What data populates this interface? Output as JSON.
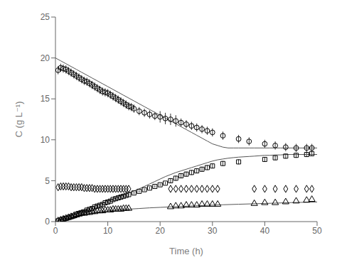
{
  "chart_data": {
    "type": "scatter",
    "xlabel": "Time (h)",
    "ylabel": "C (g L⁻¹)",
    "xlim": [
      0,
      50
    ],
    "ylim": [
      0,
      25
    ],
    "xticks": [
      0,
      10,
      20,
      30,
      40,
      50
    ],
    "yticks": [
      0,
      5,
      10,
      15,
      20,
      25
    ],
    "grid": false,
    "series": [
      {
        "type": "line",
        "line_style": "solid",
        "color": "#555555",
        "x": [
          0,
          1,
          2,
          3,
          4,
          5,
          6,
          7,
          8,
          9,
          10,
          11,
          12,
          13,
          14,
          15,
          16,
          17,
          18,
          19,
          20,
          21,
          22,
          23,
          24,
          25,
          26,
          27,
          28,
          29,
          30,
          31,
          32,
          33,
          34,
          35,
          36,
          37,
          38,
          39,
          40,
          41,
          42,
          43,
          44,
          45,
          46,
          47,
          48,
          49,
          50
        ],
        "values": [
          20.0,
          19.65,
          19.3,
          18.95,
          18.6,
          18.25,
          17.9,
          17.55,
          17.2,
          16.85,
          16.5,
          16.15,
          15.8,
          15.45,
          15.1,
          14.75,
          14.4,
          14.05,
          13.7,
          13.35,
          13.0,
          12.65,
          12.3,
          11.95,
          11.6,
          11.25,
          10.9,
          10.55,
          10.2,
          9.85,
          9.5,
          9.3,
          9.1,
          9.0,
          9.0,
          9.0,
          9.0,
          9.0,
          9.0,
          9.0,
          9.0,
          9.0,
          9.0,
          9.0,
          9.0,
          9.0,
          9.0,
          9.0,
          9.0,
          9.0,
          9.0
        ]
      },
      {
        "type": "line",
        "line_style": "solid",
        "color": "#555555",
        "x": [
          0,
          1,
          2,
          3,
          4,
          5,
          6,
          7,
          8,
          9,
          10,
          11,
          12,
          13,
          14,
          15,
          16,
          17,
          18,
          19,
          20,
          21,
          22,
          23,
          24,
          25,
          26,
          27,
          28,
          29,
          30,
          31,
          32,
          33,
          34,
          35,
          36,
          37,
          38,
          39,
          40,
          41,
          42,
          43,
          44,
          45,
          46,
          47,
          48,
          49,
          50
        ],
        "values": [
          0.0,
          0.25,
          0.5,
          0.75,
          1.0,
          1.25,
          1.5,
          1.75,
          2.0,
          2.25,
          2.5,
          2.75,
          3.0,
          3.25,
          3.5,
          3.75,
          4.0,
          4.3,
          4.6,
          4.9,
          5.2,
          5.5,
          5.75,
          6.0,
          6.2,
          6.4,
          6.6,
          6.8,
          7.0,
          7.2,
          7.4,
          7.55,
          7.65,
          7.75,
          7.82,
          7.88,
          7.92,
          7.96,
          8.0,
          8.05,
          8.1,
          8.1,
          8.15,
          8.15,
          8.2,
          8.2,
          8.2,
          8.2,
          8.2,
          8.2,
          8.2
        ]
      },
      {
        "type": "line",
        "line_style": "solid",
        "color": "#555555",
        "x": [
          0,
          1,
          2,
          3,
          4,
          5,
          6,
          7,
          8,
          9,
          10,
          12,
          14,
          16,
          18,
          20,
          22,
          24,
          26,
          28,
          30,
          32,
          35,
          40,
          45,
          50
        ],
        "values": [
          0.0,
          0.18,
          0.35,
          0.52,
          0.68,
          0.82,
          0.95,
          1.06,
          1.15,
          1.23,
          1.3,
          1.42,
          1.52,
          1.6,
          1.68,
          1.74,
          1.8,
          1.86,
          1.91,
          1.96,
          2.01,
          2.06,
          2.12,
          2.22,
          2.32,
          2.4
        ]
      },
      {
        "type": "scatter",
        "marker": "circle",
        "color": "#000000",
        "x": [
          0.5,
          1,
          1.5,
          2,
          2.5,
          3,
          3.5,
          4,
          4.5,
          5,
          5.5,
          6,
          6.5,
          7,
          7.5,
          8,
          8.5,
          9,
          9.5,
          10,
          10.5,
          11,
          11.5,
          12,
          12.5,
          13,
          13.5,
          14,
          14.5,
          15,
          16,
          17,
          18,
          19,
          20,
          21,
          22,
          23,
          24,
          25,
          26,
          27,
          28,
          29,
          30,
          32,
          35,
          37,
          40,
          42,
          44,
          46,
          48,
          49
        ],
        "values": [
          18.5,
          18.8,
          18.7,
          18.6,
          18.4,
          18.2,
          18.0,
          17.8,
          17.6,
          17.4,
          17.2,
          17.1,
          16.9,
          16.7,
          16.5,
          16.3,
          16.1,
          15.9,
          15.8,
          15.7,
          15.5,
          15.3,
          15.1,
          14.9,
          14.7,
          14.5,
          14.3,
          14.1,
          14.0,
          13.8,
          13.5,
          13.3,
          13.1,
          12.9,
          12.8,
          12.6,
          12.5,
          12.3,
          12.1,
          11.9,
          11.7,
          11.5,
          11.3,
          11.1,
          10.9,
          10.5,
          10.1,
          9.8,
          9.5,
          9.3,
          9.1,
          9.0,
          9.0,
          9.0
        ],
        "yerr": [
          0.5,
          0.5,
          0.5,
          0.5,
          0.5,
          0.5,
          0.5,
          0.5,
          0.5,
          0.5,
          0.5,
          0.5,
          0.5,
          0.5,
          0.5,
          0.5,
          0.5,
          0.5,
          0.5,
          0.5,
          0.5,
          0.5,
          0.5,
          0.5,
          0.5,
          0.5,
          0.5,
          0.5,
          0.5,
          0.5,
          0.5,
          0.5,
          0.5,
          0.5,
          0.7,
          0.7,
          0.7,
          0.7,
          0.5,
          0.5,
          0.5,
          0.5,
          0.5,
          0.5,
          0.5,
          0.5,
          0.5,
          0.5,
          0.5,
          0.5,
          0.5,
          0.5,
          0.5,
          0.5
        ]
      },
      {
        "type": "scatter",
        "marker": "square",
        "color": "#000000",
        "x": [
          0.5,
          1,
          1.5,
          2,
          2.5,
          3,
          3.5,
          4,
          4.5,
          5,
          5.5,
          6,
          6.5,
          7,
          7.5,
          8,
          8.5,
          9,
          9.5,
          10,
          10.5,
          11,
          11.5,
          12,
          12.5,
          13,
          13.5,
          14,
          15,
          16,
          17,
          18,
          19,
          20,
          21,
          22,
          23,
          24,
          25,
          26,
          27,
          28,
          29,
          30,
          32,
          35,
          40,
          42,
          44,
          46,
          48,
          49
        ],
        "values": [
          0.1,
          0.2,
          0.3,
          0.4,
          0.5,
          0.6,
          0.7,
          0.9,
          1.0,
          1.1,
          1.2,
          1.4,
          1.5,
          1.6,
          1.8,
          1.9,
          2.0,
          2.1,
          2.3,
          2.4,
          2.5,
          2.7,
          2.8,
          2.9,
          3.0,
          3.1,
          3.2,
          3.3,
          3.5,
          3.7,
          3.9,
          4.1,
          4.3,
          4.5,
          4.7,
          5.0,
          5.3,
          5.6,
          5.8,
          6.0,
          6.2,
          6.4,
          6.6,
          6.8,
          7.1,
          7.3,
          7.6,
          7.8,
          8.0,
          8.1,
          8.2,
          8.3
        ],
        "yerr": [
          0.15,
          0.15,
          0.15,
          0.15,
          0.15,
          0.15,
          0.15,
          0.15,
          0.15,
          0.15,
          0.15,
          0.15,
          0.15,
          0.15,
          0.15,
          0.15,
          0.15,
          0.15,
          0.15,
          0.15,
          0.15,
          0.15,
          0.15,
          0.15,
          0.15,
          0.15,
          0.15,
          0.15,
          0.15,
          0.15,
          0.15,
          0.15,
          0.15,
          0.15,
          0.15,
          0.3,
          0.3,
          0.3,
          0.3,
          0.3,
          0.3,
          0.3,
          0.3,
          0.3,
          0.3,
          0.3,
          0.3,
          0.3,
          0.3,
          0.3,
          0.3,
          0.3
        ]
      },
      {
        "type": "scatter",
        "marker": "diamond",
        "color": "#000000",
        "x": [
          0.5,
          1,
          1.5,
          2,
          2.5,
          3,
          3.5,
          4,
          4.5,
          5,
          5.5,
          6,
          6.5,
          7,
          7.5,
          8,
          8.5,
          9,
          9.5,
          10,
          10.5,
          11,
          11.5,
          12,
          12.5,
          13,
          13.5,
          14,
          22,
          23,
          24,
          25,
          26,
          27,
          28,
          29,
          30,
          31,
          38,
          40,
          42,
          44,
          46,
          48,
          49
        ],
        "values": [
          4.2,
          4.3,
          4.3,
          4.3,
          4.3,
          4.2,
          4.2,
          4.2,
          4.2,
          4.2,
          4.1,
          4.1,
          4.1,
          4.1,
          4.0,
          4.0,
          4.0,
          4.0,
          4.0,
          4.0,
          4.0,
          4.0,
          4.0,
          4.0,
          4.0,
          4.0,
          4.0,
          4.0,
          4.0,
          4.0,
          4.0,
          4.0,
          4.0,
          4.0,
          4.0,
          4.0,
          4.0,
          4.0,
          4.0,
          4.0,
          4.0,
          4.0,
          4.0,
          4.0,
          4.0
        ]
      },
      {
        "type": "scatter",
        "marker": "triangle",
        "color": "#000000",
        "x": [
          0.5,
          1,
          1.5,
          2,
          2.5,
          3,
          3.5,
          4,
          4.5,
          5,
          5.5,
          6,
          6.5,
          7,
          7.5,
          8,
          8.5,
          9,
          9.5,
          10,
          10.5,
          11,
          11.5,
          12,
          12.5,
          13,
          13.5,
          14,
          22,
          23,
          24,
          25,
          26,
          27,
          28,
          29,
          30,
          31,
          38,
          40,
          42,
          44,
          46,
          48,
          49
        ],
        "values": [
          0.1,
          0.2,
          0.3,
          0.4,
          0.5,
          0.6,
          0.7,
          0.8,
          0.9,
          1.0,
          1.0,
          1.1,
          1.1,
          1.2,
          1.2,
          1.3,
          1.3,
          1.3,
          1.4,
          1.4,
          1.4,
          1.5,
          1.5,
          1.5,
          1.5,
          1.6,
          1.6,
          1.6,
          1.8,
          1.9,
          1.9,
          2.0,
          2.0,
          2.0,
          2.1,
          2.1,
          2.1,
          2.1,
          2.2,
          2.3,
          2.3,
          2.4,
          2.5,
          2.6,
          2.7
        ]
      }
    ]
  }
}
